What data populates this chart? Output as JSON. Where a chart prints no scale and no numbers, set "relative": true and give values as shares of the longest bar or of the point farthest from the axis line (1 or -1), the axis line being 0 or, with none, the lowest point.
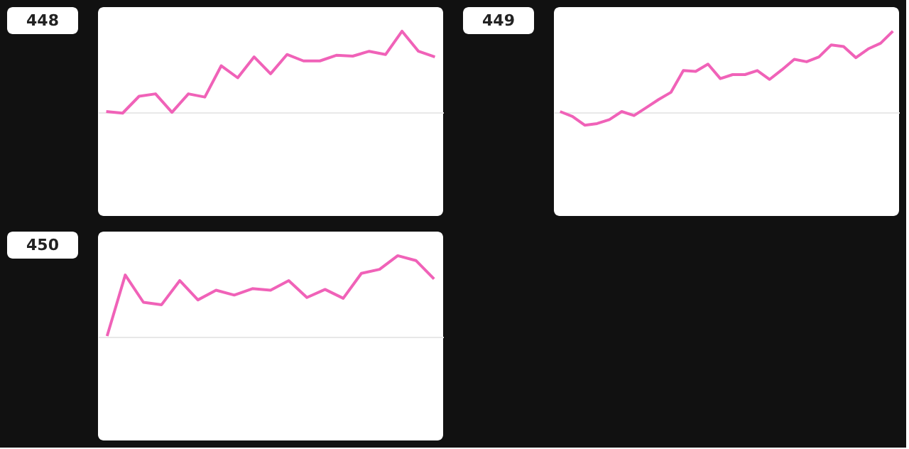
{
  "chart_data": [
    {
      "type": "line",
      "title": "448",
      "relative": true,
      "categories": [
        null,
        null,
        null,
        null,
        null,
        null,
        null,
        null,
        null,
        null,
        null,
        null,
        null,
        null,
        null,
        null,
        null,
        null,
        null,
        null,
        null
      ],
      "series": [
        {
          "color": "#f062b8",
          "values": [
            0,
            -0.02,
            0.19,
            0.22,
            -0.01,
            0.22,
            0.18,
            0.57,
            0.42,
            0.68,
            0.47,
            0.71,
            0.63,
            0.63,
            0.7,
            0.69,
            0.75,
            0.71,
            1,
            0.75,
            0.68
          ]
        }
      ],
      "legend": false,
      "marker": "none"
    },
    {
      "type": "line",
      "title": "449",
      "relative": true,
      "categories": [
        null,
        null,
        null,
        null,
        null,
        null,
        null,
        null,
        null,
        null,
        null,
        null,
        null,
        null,
        null,
        null,
        null,
        null,
        null,
        null,
        null,
        null,
        null,
        null,
        null,
        null,
        null,
        null
      ],
      "series": [
        {
          "color": "#f062b8",
          "values": [
            0,
            -0.06,
            -0.17,
            -0.15,
            -0.1,
            0,
            -0.05,
            0.05,
            0.15,
            0.24,
            0.51,
            0.5,
            0.59,
            0.41,
            0.46,
            0.46,
            0.51,
            0.4,
            0.52,
            0.65,
            0.62,
            0.68,
            0.83,
            0.81,
            0.67,
            0.78,
            0.85,
            1
          ]
        }
      ],
      "legend": false,
      "marker": "none"
    },
    {
      "type": "line",
      "title": "450",
      "relative": true,
      "categories": [
        null,
        null,
        null,
        null,
        null,
        null,
        null,
        null,
        null,
        null,
        null,
        null,
        null,
        null,
        null,
        null,
        null,
        null,
        null
      ],
      "series": [
        {
          "color": "#f062b8",
          "values": [
            0,
            0.76,
            0.42,
            0.39,
            0.69,
            0.45,
            0.57,
            0.51,
            0.59,
            0.57,
            0.69,
            0.48,
            0.58,
            0.47,
            0.78,
            0.83,
            1,
            0.94,
            0.71
          ]
        }
      ],
      "legend": false,
      "marker": "none"
    }
  ]
}
